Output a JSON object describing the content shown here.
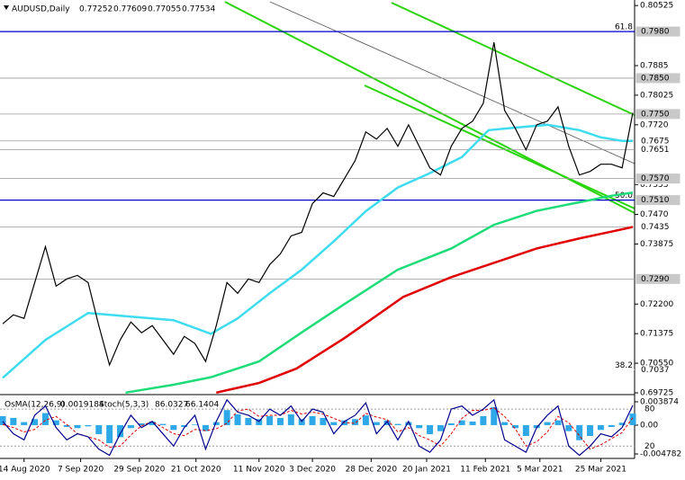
{
  "chart_data": {
    "type": "line",
    "title": "AUDUSD,Daily",
    "ohlc": [
      0.77252,
      0.77609,
      0.77055,
      0.77534
    ],
    "ylim": [
      0.697,
      0.8068
    ],
    "yticks": [
      0.80525,
      0.7885,
      0.78025,
      {
        "value": 0.772,
        "label": "0.7720"
      },
      0.7553,
      {
        "value": 0.747,
        "label": "0.7470"
      },
      0.73875,
      {
        "value": 0.722,
        "label": "0.72200"
      },
      0.71375,
      {
        "value": 0.7055,
        "label": "0.70550"
      },
      0.69725
    ],
    "xlim": [
      0,
      59
    ],
    "xticks": [
      {
        "value": 2,
        "label": "14 Aug 2020"
      },
      {
        "value": 7.3,
        "label": "7 Sep 2020"
      },
      {
        "value": 12.8,
        "label": "29 Sep 2020"
      },
      {
        "value": 18.1,
        "label": "21 Oct 2020"
      },
      {
        "value": 24,
        "label": "11 Nov 2020"
      },
      {
        "value": 29,
        "label": "3 Dec 2020"
      },
      {
        "value": 34.5,
        "label": "28 Dec 2020"
      },
      {
        "value": 39.7,
        "label": "20 Jan 2021"
      },
      {
        "value": 45.2,
        "label": "11 Feb 2021"
      },
      {
        "value": 50.3,
        "label": "5 Mar 2021"
      },
      {
        "value": 56,
        "label": "25 Mar 2021"
      }
    ],
    "levels": [
      {
        "value": 0.798,
        "label": "0.7980",
        "color": "#0000c8",
        "fib": 61.8
      },
      {
        "value": 0.785,
        "label": "0.7850",
        "color": "#9a9a9a"
      },
      {
        "value": 0.775,
        "label": "0.7750",
        "color": "#9a9a9a"
      },
      {
        "value": 0.7675,
        "color": "#9a9a9a"
      },
      {
        "value": 0.7651,
        "color": "#9a9a9a"
      },
      {
        "value": 0.757,
        "label": "0.7570",
        "color": "#9a9a9a"
      },
      {
        "value": 0.751,
        "label": "0.7510",
        "color": "#0000c8",
        "fib": {
          "value": 50,
          "label": "50.0"
        }
      },
      {
        "value": 0.7435,
        "color": "#9a9a9a"
      },
      {
        "value": 0.729,
        "label": "0.7290",
        "color": "#9a9a9a"
      },
      {
        "value": 0.7037,
        "color": "#ffffff",
        "fib": 38.2
      }
    ],
    "series": [
      {
        "color": "#000000",
        "x": [
          0,
          1,
          2,
          3,
          4,
          5,
          6,
          7,
          8,
          9,
          10,
          11,
          12,
          13,
          14,
          15,
          16,
          17,
          18,
          19,
          20,
          21,
          22,
          23,
          24,
          25,
          26,
          27,
          28,
          29,
          30,
          31,
          32,
          33,
          34,
          35,
          36,
          37,
          38,
          39,
          40,
          41,
          42,
          43,
          44,
          45,
          46,
          47,
          48,
          49,
          50,
          51,
          52,
          53,
          54,
          55,
          56,
          57,
          58,
          59
        ],
        "values": [
          0.7165,
          0.719,
          0.718,
          0.728,
          0.738,
          0.727,
          0.729,
          0.73,
          0.728,
          0.716,
          0.705,
          0.712,
          0.717,
          0.714,
          0.716,
          0.712,
          0.708,
          0.713,
          0.711,
          0.706,
          0.716,
          0.728,
          0.725,
          0.729,
          0.728,
          0.733,
          0.736,
          0.741,
          0.742,
          0.75,
          0.753,
          0.752,
          0.757,
          0.762,
          0.77,
          0.768,
          0.771,
          0.766,
          0.772,
          0.766,
          0.76,
          0.758,
          0.766,
          0.771,
          0.773,
          0.778,
          0.795,
          0.776,
          0.771,
          0.765,
          0.772,
          0.773,
          0.777,
          0.766,
          0.758,
          0.759,
          0.761,
          0.761,
          0.76,
          0.77534
        ]
      },
      {
        "color": "#3fdcf0",
        "x": [
          0,
          4,
          8,
          12,
          16,
          19.5,
          22,
          25,
          28,
          31,
          34,
          37,
          40,
          43,
          45.5,
          48,
          51,
          54,
          56,
          58,
          59
        ],
        "values": [
          0.7014,
          0.712,
          0.7195,
          0.7185,
          0.7175,
          0.7137,
          0.718,
          0.725,
          0.7316,
          0.7395,
          0.7479,
          0.7545,
          0.7585,
          0.763,
          0.7705,
          0.7712,
          0.772,
          0.7705,
          0.7685,
          0.7675,
          0.7675
        ]
      },
      {
        "color": "#1edc78",
        "x": [
          11.5,
          16,
          19.5,
          24,
          28,
          32,
          37,
          42,
          46,
          50,
          54,
          57,
          59
        ],
        "values": [
          0.6973,
          0.6995,
          0.7016,
          0.706,
          0.7141,
          0.722,
          0.7316,
          0.7375,
          0.7441,
          0.748,
          0.7504,
          0.7522,
          0.7531
        ]
      },
      {
        "color": "#e00000",
        "x": [
          20,
          24,
          27.5,
          32,
          37.5,
          42,
          46.5,
          50,
          54,
          57,
          59
        ],
        "values": [
          0.6973,
          0.7,
          0.704,
          0.7125,
          0.724,
          0.7295,
          0.734,
          0.7375,
          0.7403,
          0.7422,
          0.7435
        ]
      }
    ],
    "oscillator": {
      "osma_title": "OsMA(12,26,9)",
      "osma_last": 0.0019184,
      "stoch_title": "Stoch(5,3,3)",
      "stoch_main_last": 86.0327,
      "stoch_signal_last": 66.1404,
      "ylim": [
        -0.00553,
        0.00492
      ],
      "yticks": [
        0.003874,
        {
          "value": 0,
          "label": "0.00"
        },
        -0.004782
      ],
      "stoch_ylim": [
        0,
        102
      ],
      "stoch_yticks": [
        80,
        20
      ],
      "osma_color": "#2fa8e8",
      "main_color": "#00008c",
      "signal_color": "#e00000",
      "osma": [
        0.0015,
        0.0012,
        0.0005,
        0.001,
        0.002,
        0.0008,
        -0.0003,
        -0.0005,
        -0.0002,
        -0.0015,
        -0.003,
        -0.002,
        -0.0005,
        0.0003,
        0.0006,
        0.0002,
        -0.0008,
        -0.0003,
        0.0001,
        -0.001,
        0.0005,
        0.0025,
        0.0018,
        0.0012,
        0.001,
        0.0015,
        0.0012,
        0.0018,
        0.001,
        0.0015,
        0.0012,
        0.0005,
        0.0008,
        0.001,
        0.0016,
        0.0005,
        0.0008,
        0.0002,
        0.0005,
        -0.0005,
        -0.0015,
        -0.001,
        0.0003,
        0.0008,
        0.0006,
        0.0015,
        0.003,
        0.0005,
        -0.0005,
        -0.0018,
        -0.0005,
        0.0005,
        0.0008,
        -0.001,
        -0.0025,
        -0.0018,
        -0.0008,
        -0.0003,
        0.0004,
        0.0019184
      ],
      "main": [
        60,
        40,
        30,
        70,
        85,
        50,
        30,
        40,
        35,
        15,
        5,
        40,
        70,
        50,
        60,
        40,
        20,
        50,
        70,
        15,
        60,
        95,
        75,
        70,
        60,
        80,
        70,
        85,
        60,
        80,
        75,
        40,
        60,
        70,
        90,
        40,
        60,
        30,
        60,
        20,
        10,
        30,
        80,
        85,
        70,
        80,
        95,
        30,
        20,
        10,
        50,
        70,
        85,
        20,
        5,
        20,
        40,
        35,
        50,
        86.0327
      ],
      "signal": [
        55,
        50,
        43,
        47,
        62,
        68,
        55,
        40,
        35,
        30,
        18,
        20,
        38,
        53,
        60,
        50,
        40,
        37,
        47,
        45,
        48,
        57,
        77,
        80,
        68,
        70,
        70,
        78,
        72,
        75,
        72,
        65,
        58,
        57,
        73,
        67,
        63,
        43,
        50,
        37,
        30,
        20,
        40,
        65,
        78,
        78,
        82,
        68,
        48,
        20,
        27,
        43,
        68,
        58,
        37,
        15,
        22,
        32,
        42,
        66.1404
      ]
    }
  }
}
